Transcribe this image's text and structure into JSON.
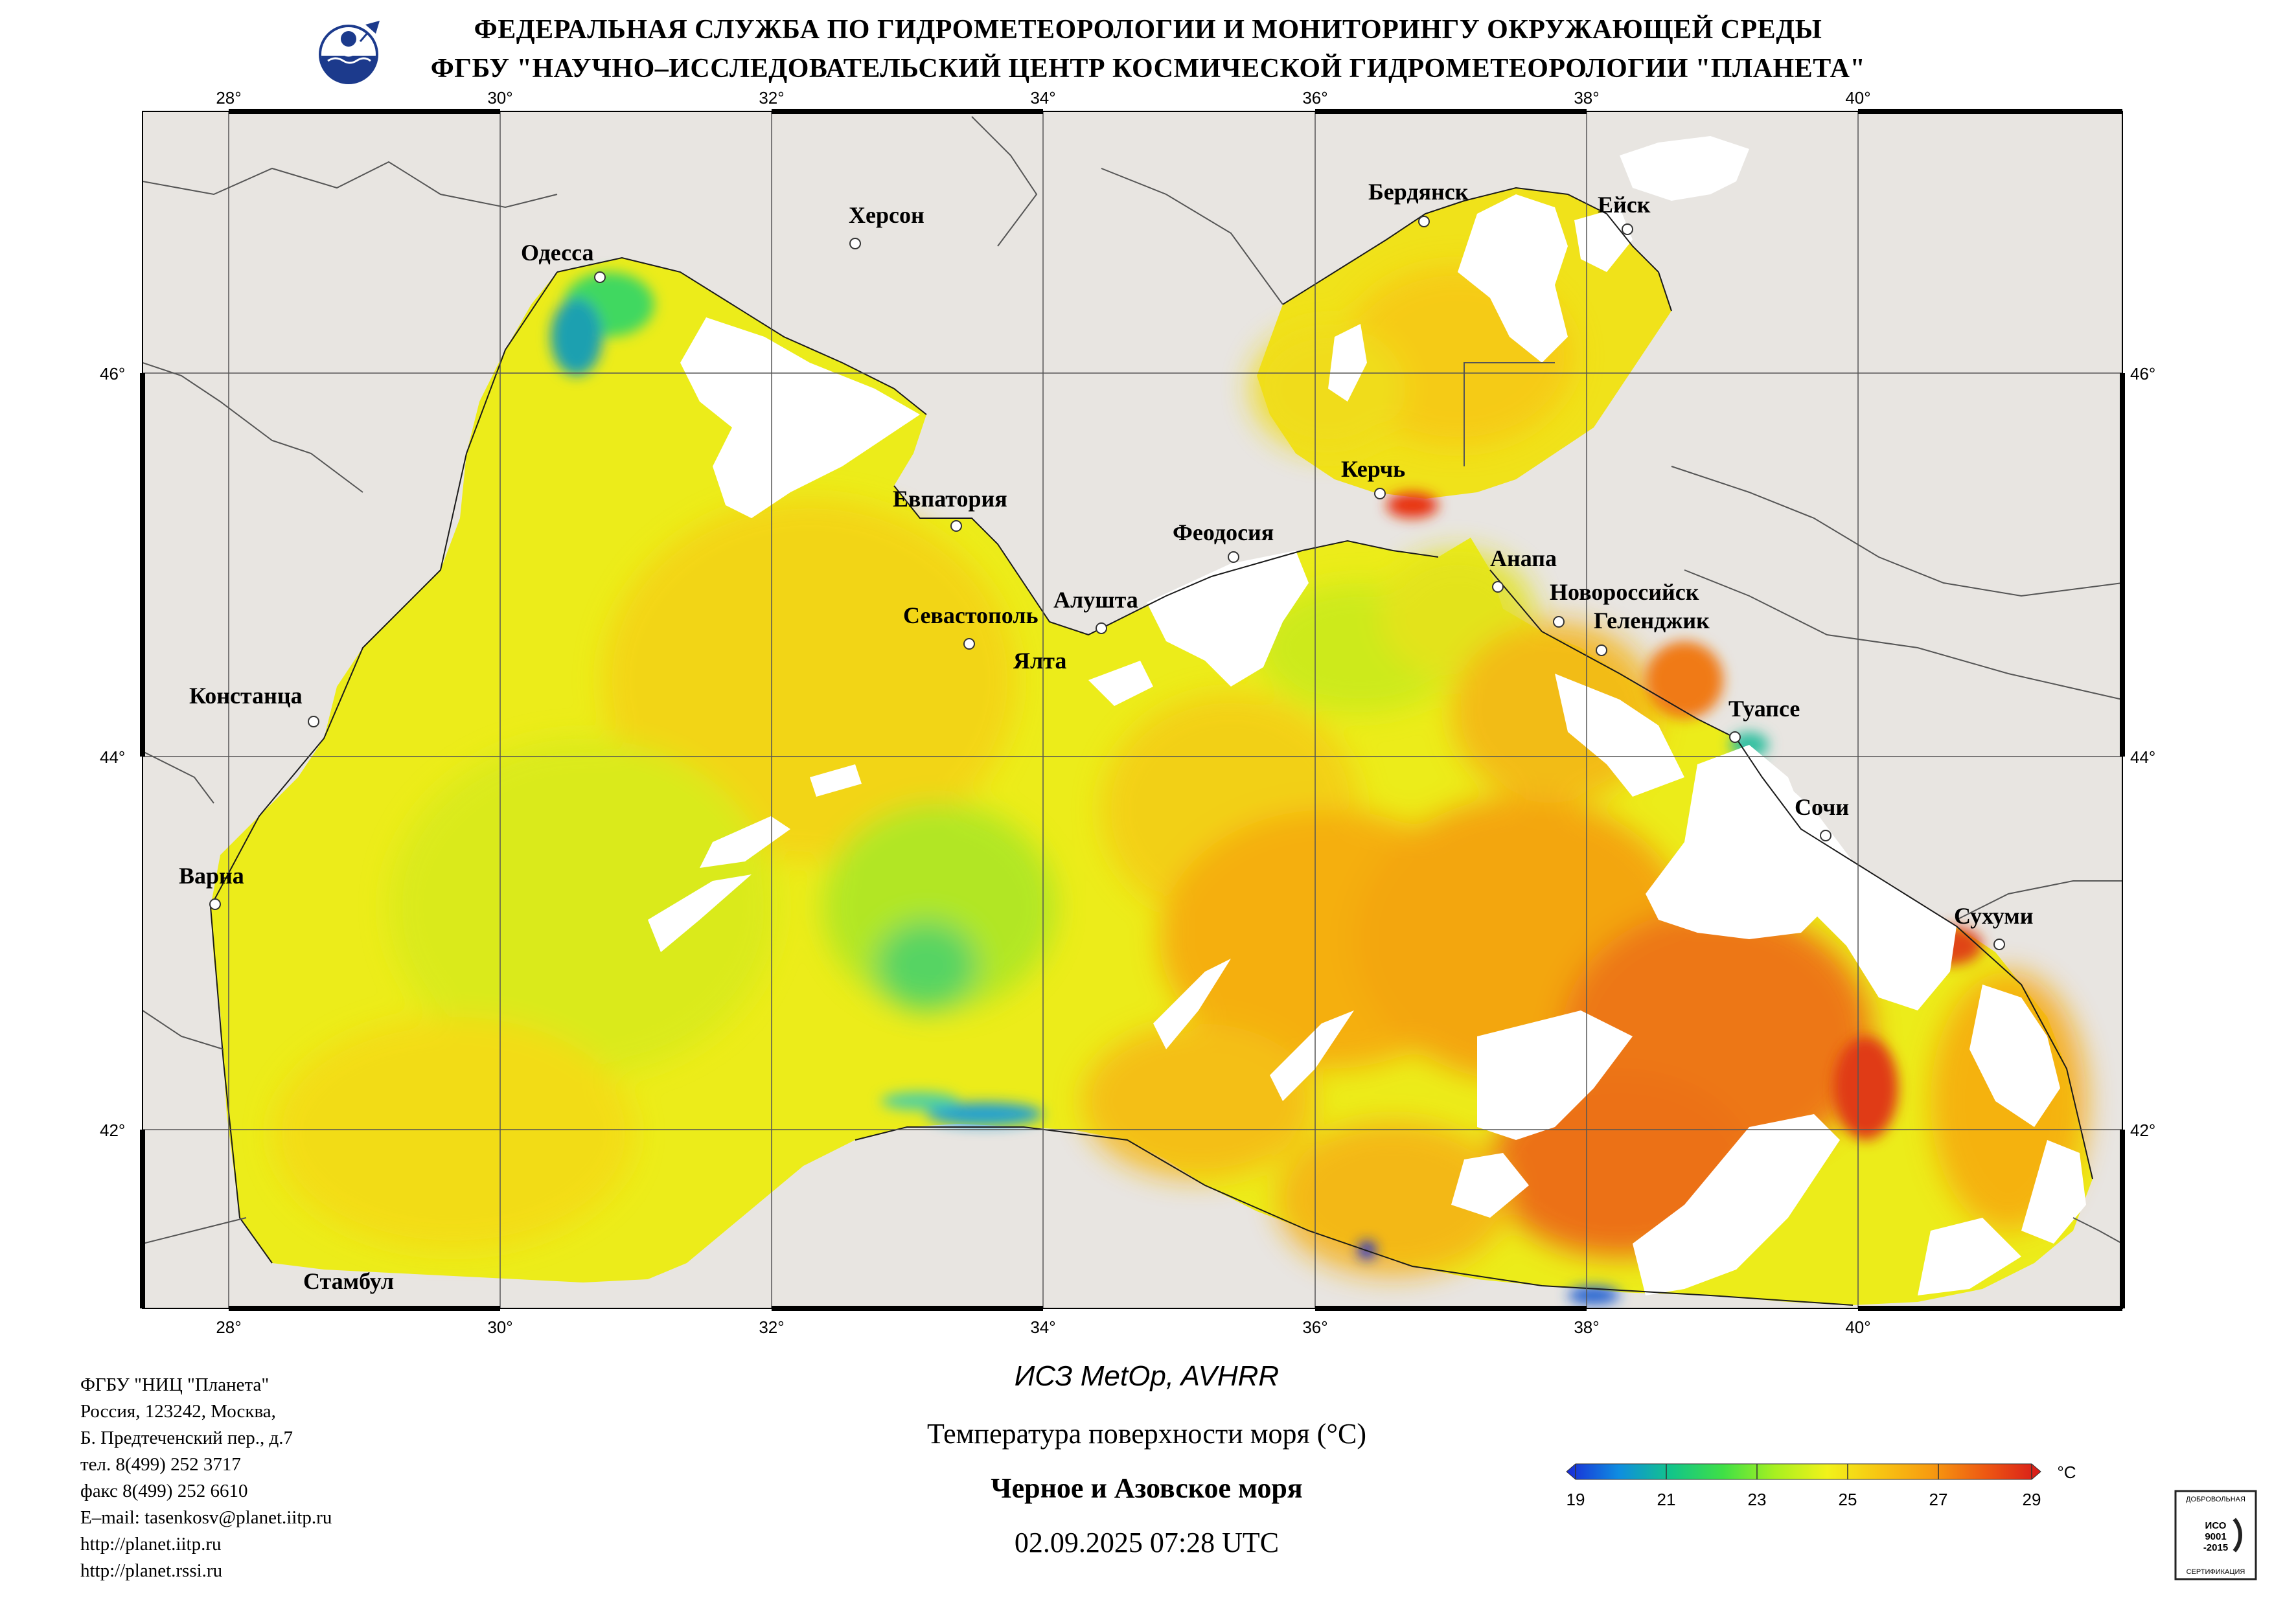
{
  "header": {
    "line1": "ФЕДЕРАЛЬНАЯ СЛУЖБА ПО ГИДРОМЕТЕОРОЛОГИИ И МОНИТОРИНГУ ОКРУЖАЮЩЕЙ СРЕДЫ",
    "line2": "ФГБУ \"НАУЧНО–ИССЛЕДОВАТЕЛЬСКИЙ ЦЕНТР КОСМИЧЕСКОЙ ГИДРОМЕТЕОРОЛОГИИ \"ПЛАНЕТА\""
  },
  "logo_icon": "roshydromet-emblem-icon",
  "map": {
    "lon_ticks": [
      "28°",
      "30°",
      "32°",
      "34°",
      "36°",
      "38°",
      "40°"
    ],
    "lat_ticks": [
      "46°",
      "44°",
      "42°"
    ],
    "colors": {
      "land": "#e8e5e1",
      "cloud": "#ffffff",
      "border": "#000000"
    },
    "cities": [
      {
        "name": "Одесса"
      },
      {
        "name": "Херсон"
      },
      {
        "name": "Бердянск"
      },
      {
        "name": "Ейск"
      },
      {
        "name": "Евпатория"
      },
      {
        "name": "Керчь"
      },
      {
        "name": "Феодосия"
      },
      {
        "name": "Анапа"
      },
      {
        "name": "Новороссийск"
      },
      {
        "name": "Геленджик"
      },
      {
        "name": "Алушта"
      },
      {
        "name": "Севастополь"
      },
      {
        "name": "Ялта"
      },
      {
        "name": "Констанца"
      },
      {
        "name": "Туапсе"
      },
      {
        "name": "Сочи"
      },
      {
        "name": "Варна"
      },
      {
        "name": "Сухуми"
      },
      {
        "name": "Стамбул"
      }
    ]
  },
  "info": [
    "ФГБУ \"НИЦ \"Планета\"",
    "Россия, 123242, Москва,",
    "Б. Предтеченский пер., д.7",
    "тел. 8(499) 252 3717",
    "факс 8(499) 252 6610",
    "E–mail: tasenkosv@planet.iitp.ru",
    "http://planet.iitp.ru",
    "http://planet.rssi.ru"
  ],
  "caption": {
    "satellite": "ИСЗ MetOp, AVHRR",
    "parameter": "Температура поверхности моря (°C)",
    "region": "Черное и Азовское моря",
    "datetime": "02.09.2025 07:28 UTC"
  },
  "legend": {
    "ticks": [
      "19",
      "21",
      "23",
      "25",
      "27",
      "29"
    ],
    "unit": "°C",
    "colors": [
      "#1a2ad8",
      "#0f8de0",
      "#12c48a",
      "#3fe046",
      "#a8f020",
      "#f2f21a",
      "#f7c512",
      "#f79a10",
      "#ee5a12",
      "#d81a1a"
    ]
  },
  "cert": {
    "top_text": "ДОБРОВОЛЬНАЯ",
    "mid1": "ИСО",
    "mid2": "9001",
    "mid3": "-2015",
    "bottom_text": "СЕРТИФИКАЦИЯ"
  }
}
